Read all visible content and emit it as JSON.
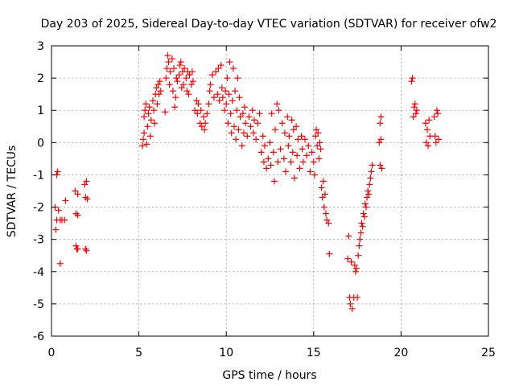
{
  "chart_data": {
    "type": "scatter",
    "title": "Day 203 of 2025, Sidereal Day-to-day VTEC variation (SDTVAR) for receiver ofw2",
    "xlabel": "GPS time / hours",
    "ylabel": "SDTVAR / TECUs",
    "xlim": [
      0,
      25
    ],
    "ylim": [
      -6,
      3
    ],
    "xticks": [
      0,
      5,
      10,
      15,
      20,
      25
    ],
    "yticks": [
      -6,
      -5,
      -4,
      -3,
      -2,
      -1,
      0,
      1,
      2,
      3
    ],
    "xtick_labels": [
      "0",
      "5",
      "10",
      "15",
      "20",
      "25"
    ],
    "ytick_labels": [
      "-6",
      "-5",
      "-4",
      "-3",
      "-2",
      "-1",
      "0",
      "1",
      "2",
      "3"
    ],
    "grid": true,
    "marker": "+",
    "color": "#ff0000",
    "series": [
      {
        "name": "SDTVAR",
        "points": [
          [
            0.2,
            -2.0
          ],
          [
            0.25,
            -2.7
          ],
          [
            0.3,
            -2.4
          ],
          [
            0.3,
            -1.0
          ],
          [
            0.35,
            -0.9
          ],
          [
            0.4,
            -2.1
          ],
          [
            0.5,
            -3.75
          ],
          [
            0.5,
            -2.4
          ],
          [
            0.6,
            -2.4
          ],
          [
            0.75,
            -2.4
          ],
          [
            0.8,
            -1.8
          ],
          [
            1.35,
            -1.5
          ],
          [
            1.4,
            -2.2
          ],
          [
            1.4,
            -3.2
          ],
          [
            1.45,
            -3.3
          ],
          [
            1.5,
            -2.25
          ],
          [
            1.5,
            -1.6
          ],
          [
            1.5,
            -3.3
          ],
          [
            1.9,
            -1.3
          ],
          [
            1.95,
            -1.7
          ],
          [
            1.95,
            -3.3
          ],
          [
            2.0,
            -1.2
          ],
          [
            2.0,
            -3.35
          ],
          [
            2.05,
            -1.75
          ],
          [
            5.2,
            -0.1
          ],
          [
            5.25,
            0.1
          ],
          [
            5.3,
            0.3
          ],
          [
            5.3,
            0.8
          ],
          [
            5.35,
            1.0
          ],
          [
            5.4,
            1.2
          ],
          [
            5.45,
            -0.05
          ],
          [
            5.5,
            0.5
          ],
          [
            5.55,
            0.9
          ],
          [
            5.6,
            1.1
          ],
          [
            5.65,
            0.2
          ],
          [
            5.7,
            0.7
          ],
          [
            5.8,
            1.3
          ],
          [
            5.85,
            1.0
          ],
          [
            5.9,
            0.6
          ],
          [
            5.95,
            1.5
          ],
          [
            6.0,
            1.7
          ],
          [
            6.05,
            1.2
          ],
          [
            6.1,
            1.8
          ],
          [
            6.15,
            1.5
          ],
          [
            6.2,
            1.9
          ],
          [
            6.25,
            1.6
          ],
          [
            6.5,
            0.95
          ],
          [
            6.55,
            2.0
          ],
          [
            6.6,
            2.3
          ],
          [
            6.65,
            2.7
          ],
          [
            6.7,
            2.5
          ],
          [
            6.75,
            1.8
          ],
          [
            6.8,
            2.2
          ],
          [
            6.9,
            2.6
          ],
          [
            6.95,
            1.6
          ],
          [
            7.0,
            2.3
          ],
          [
            7.05,
            1.1
          ],
          [
            7.1,
            1.4
          ],
          [
            7.15,
            2.0
          ],
          [
            7.2,
            1.9
          ],
          [
            7.3,
            2.1
          ],
          [
            7.35,
            2.4
          ],
          [
            7.4,
            2.5
          ],
          [
            7.45,
            1.7
          ],
          [
            7.5,
            2.2
          ],
          [
            7.55,
            1.8
          ],
          [
            7.6,
            2.3
          ],
          [
            7.7,
            2.0
          ],
          [
            7.75,
            1.6
          ],
          [
            7.8,
            2.2
          ],
          [
            7.85,
            1.5
          ],
          [
            7.9,
            2.1
          ],
          [
            8.0,
            1.8
          ],
          [
            8.05,
            2.2
          ],
          [
            8.1,
            1.9
          ],
          [
            8.2,
            1.0
          ],
          [
            8.3,
            1.3
          ],
          [
            8.35,
            0.9
          ],
          [
            8.4,
            1.2
          ],
          [
            8.5,
            0.6
          ],
          [
            8.55,
            1.0
          ],
          [
            8.6,
            0.5
          ],
          [
            8.7,
            0.8
          ],
          [
            8.75,
            0.4
          ],
          [
            8.8,
            0.6
          ],
          [
            8.9,
            0.9
          ],
          [
            9.0,
            1.2
          ],
          [
            9.05,
            1.6
          ],
          [
            9.1,
            1.8
          ],
          [
            9.2,
            2.1
          ],
          [
            9.3,
            1.4
          ],
          [
            9.4,
            2.2
          ],
          [
            9.5,
            1.5
          ],
          [
            9.55,
            2.3
          ],
          [
            9.6,
            1.3
          ],
          [
            9.7,
            2.4
          ],
          [
            9.75,
            1.7
          ],
          [
            9.8,
            1.4
          ],
          [
            9.9,
            1.0
          ],
          [
            9.95,
            1.6
          ],
          [
            10.0,
            1.2
          ],
          [
            10.05,
            2.0
          ],
          [
            10.1,
            0.6
          ],
          [
            10.15,
            1.5
          ],
          [
            10.2,
            2.5
          ],
          [
            10.25,
            0.9
          ],
          [
            10.3,
            0.3
          ],
          [
            10.35,
            1.3
          ],
          [
            10.4,
            2.3
          ],
          [
            10.45,
            0.5
          ],
          [
            10.5,
            1.6
          ],
          [
            10.55,
            0.1
          ],
          [
            10.6,
            1.0
          ],
          [
            10.65,
            2.0
          ],
          [
            10.7,
            0.4
          ],
          [
            10.75,
            1.4
          ],
          [
            10.8,
            0.8
          ],
          [
            10.9,
            -0.1
          ],
          [
            10.95,
            0.9
          ],
          [
            11.0,
            0.3
          ],
          [
            11.05,
            1.1
          ],
          [
            11.1,
            0.6
          ],
          [
            11.2,
            0.2
          ],
          [
            11.3,
            0.8
          ],
          [
            11.4,
            0.5
          ],
          [
            11.5,
            1.0
          ],
          [
            11.55,
            0.3
          ],
          [
            11.6,
            0.7
          ],
          [
            11.7,
            0.1
          ],
          [
            11.8,
            0.6
          ],
          [
            11.9,
            0.9
          ],
          [
            12.0,
            -0.3
          ],
          [
            12.1,
            0.2
          ],
          [
            12.15,
            -0.6
          ],
          [
            12.2,
            -0.1
          ],
          [
            12.3,
            -0.8
          ],
          [
            12.4,
            -0.5
          ],
          [
            12.5,
            0.0
          ],
          [
            12.55,
            -0.7
          ],
          [
            12.6,
            0.9
          ],
          [
            12.7,
            -0.3
          ],
          [
            12.75,
            -1.2
          ],
          [
            12.8,
            0.4
          ],
          [
            12.9,
            1.2
          ],
          [
            12.95,
            -0.6
          ],
          [
            13.0,
            1.0
          ],
          [
            13.1,
            -0.2
          ],
          [
            13.2,
            0.6
          ],
          [
            13.3,
            -0.5
          ],
          [
            13.35,
            0.3
          ],
          [
            13.4,
            -0.9
          ],
          [
            13.5,
            0.8
          ],
          [
            13.55,
            -0.1
          ],
          [
            13.6,
            0.2
          ],
          [
            13.7,
            -0.6
          ],
          [
            13.75,
            0.7
          ],
          [
            13.8,
            -0.3
          ],
          [
            13.85,
            0.4
          ],
          [
            13.9,
            -1.1
          ],
          [
            14.0,
            0.5
          ],
          [
            14.05,
            -0.4
          ],
          [
            14.1,
            0.1
          ],
          [
            14.2,
            -0.8
          ],
          [
            14.3,
            0.2
          ],
          [
            14.35,
            -0.2
          ],
          [
            14.4,
            -0.6
          ],
          [
            14.5,
            0.1
          ],
          [
            14.6,
            -0.4
          ],
          [
            14.7,
            -0.1
          ],
          [
            14.8,
            -0.9
          ],
          [
            14.9,
            -0.3
          ],
          [
            15.0,
            -0.6
          ],
          [
            15.05,
            -1.0
          ],
          [
            15.1,
            0.2
          ],
          [
            15.15,
            0.4
          ],
          [
            15.2,
            -0.1
          ],
          [
            15.25,
            0.3
          ],
          [
            15.3,
            -0.5
          ],
          [
            15.35,
            0.0
          ],
          [
            15.4,
            -0.2
          ],
          [
            15.45,
            -1.4
          ],
          [
            15.5,
            -1.7
          ],
          [
            15.55,
            -1.2
          ],
          [
            15.6,
            -2.0
          ],
          [
            15.65,
            -1.6
          ],
          [
            15.7,
            -2.2
          ],
          [
            15.75,
            -2.4
          ],
          [
            15.85,
            -2.5
          ],
          [
            15.9,
            -3.45
          ],
          [
            16.95,
            -3.6
          ],
          [
            17.0,
            -2.9
          ],
          [
            17.05,
            -4.8
          ],
          [
            17.1,
            -5.0
          ],
          [
            17.15,
            -3.7
          ],
          [
            17.2,
            -5.15
          ],
          [
            17.3,
            -4.8
          ],
          [
            17.35,
            -3.8
          ],
          [
            17.4,
            -4.0
          ],
          [
            17.45,
            -3.9
          ],
          [
            17.5,
            -4.8
          ],
          [
            17.55,
            -3.5
          ],
          [
            17.6,
            -3.2
          ],
          [
            17.65,
            -3.0
          ],
          [
            17.7,
            -2.8
          ],
          [
            17.75,
            -2.5
          ],
          [
            17.8,
            -2.6
          ],
          [
            17.85,
            -2.2
          ],
          [
            17.9,
            -2.3
          ],
          [
            17.95,
            -1.9
          ],
          [
            18.0,
            -2.0
          ],
          [
            18.05,
            -1.7
          ],
          [
            18.1,
            -1.5
          ],
          [
            18.15,
            -1.6
          ],
          [
            18.2,
            -1.3
          ],
          [
            18.25,
            -1.1
          ],
          [
            18.3,
            -0.9
          ],
          [
            18.35,
            -0.7
          ],
          [
            18.75,
            0.0
          ],
          [
            18.8,
            0.6
          ],
          [
            18.8,
            -0.7
          ],
          [
            18.85,
            0.1
          ],
          [
            18.85,
            0.8
          ],
          [
            18.9,
            -0.8
          ],
          [
            20.6,
            1.9
          ],
          [
            20.65,
            2.0
          ],
          [
            20.7,
            0.8
          ],
          [
            20.75,
            1.1
          ],
          [
            20.8,
            1.2
          ],
          [
            20.85,
            0.9
          ],
          [
            20.9,
            1.0
          ],
          [
            21.4,
            0.6
          ],
          [
            21.45,
            0.0
          ],
          [
            21.5,
            0.4
          ],
          [
            21.55,
            -0.1
          ],
          [
            21.6,
            0.7
          ],
          [
            21.65,
            0.2
          ],
          [
            21.9,
            0.8
          ],
          [
            21.95,
            0.2
          ],
          [
            22.0,
            0.0
          ],
          [
            22.05,
            1.0
          ],
          [
            22.1,
            0.9
          ],
          [
            22.15,
            0.1
          ]
        ]
      }
    ]
  }
}
